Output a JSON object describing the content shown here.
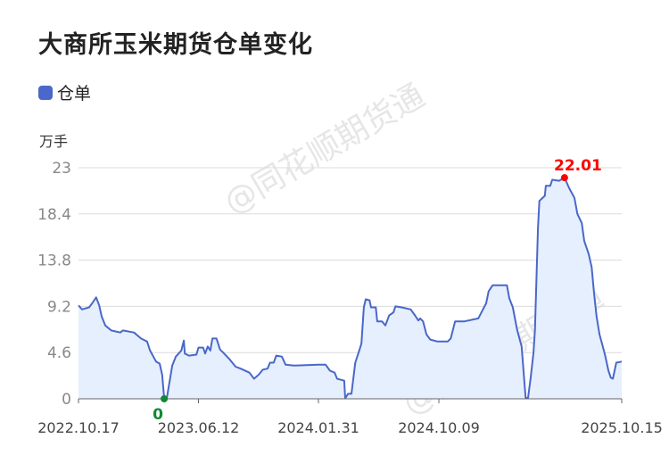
{
  "title": "大商所玉米期货仓单变化",
  "legend": {
    "label": "仓单",
    "color": "#4a67c9"
  },
  "watermark": "@同花顺期货通",
  "chart_data": {
    "type": "area",
    "title": "大商所玉米期货仓单变化",
    "ylabel": "万手",
    "xlabel": "",
    "ylim": [
      0,
      23
    ],
    "y_ticks": [
      "0",
      "4.6",
      "9.2",
      "13.8",
      "18.4",
      "23"
    ],
    "x_ticks": [
      "2022.10.17",
      "2023.06.12",
      "2024.01.31",
      "2024.10.09",
      "2025.10.15"
    ],
    "grid": true,
    "legend_position": "top-left",
    "line_color": "#4a67c9",
    "fill_color": "#e6effd",
    "series": [
      {
        "name": "仓单",
        "x": [
          "2022-10-17",
          "2022-10-24",
          "2022-11-07",
          "2022-11-13",
          "2022-11-21",
          "2022-11-27",
          "2022-12-02",
          "2022-12-09",
          "2022-12-21",
          "2023-01-08",
          "2023-01-13",
          "2023-02-04",
          "2023-02-18",
          "2023-03-02",
          "2023-03-08",
          "2023-03-20",
          "2023-03-27",
          "2023-04-01",
          "2023-04-05",
          "2023-04-10",
          "2023-04-21",
          "2023-04-28",
          "2023-05-09",
          "2023-05-14",
          "2023-05-16",
          "2023-05-24",
          "2023-06-08",
          "2023-06-12",
          "2023-06-21",
          "2023-06-25",
          "2023-06-30",
          "2023-07-05",
          "2023-07-09",
          "2023-07-17",
          "2023-07-24",
          "2023-07-30",
          "2023-08-12",
          "2023-08-23",
          "2023-09-02",
          "2023-09-19",
          "2023-09-28",
          "2023-10-07",
          "2023-10-15",
          "2023-10-24",
          "2023-10-29",
          "2023-11-05",
          "2023-11-10",
          "2023-11-21",
          "2023-11-28",
          "2023-12-15",
          "2024-01-31",
          "2024-02-15",
          "2024-02-24",
          "2024-03-05",
          "2024-03-10",
          "2024-03-25",
          "2024-03-27",
          "2024-04-02",
          "2024-04-09",
          "2024-04-17",
          "2024-04-24",
          "2024-04-30",
          "2024-05-05",
          "2024-05-09",
          "2024-05-17",
          "2024-05-20",
          "2024-05-30",
          "2024-06-02",
          "2024-06-12",
          "2024-06-19",
          "2024-06-27",
          "2024-07-06",
          "2024-07-10",
          "2024-07-23",
          "2024-08-11",
          "2024-08-20",
          "2024-08-27",
          "2024-08-31",
          "2024-09-06",
          "2024-09-13",
          "2024-09-21",
          "2024-10-06",
          "2024-10-27",
          "2024-11-02",
          "2024-11-11",
          "2024-11-29",
          "2024-12-28",
          "2025-01-13",
          "2025-01-18",
          "2025-01-26",
          "2025-02-24",
          "2025-03-01",
          "2025-03-08",
          "2025-03-17",
          "2025-03-26",
          "2025-04-03",
          "2025-04-08",
          "2025-04-13",
          "2025-04-19",
          "2025-04-22",
          "2025-04-28",
          "2025-05-01",
          "2025-05-12",
          "2025-05-14",
          "2025-05-23",
          "2025-05-27",
          "2025-06-10",
          "2025-06-21",
          "2025-06-30",
          "2025-07-11",
          "2025-07-17",
          "2025-07-26",
          "2025-07-31",
          "2025-08-09",
          "2025-08-15",
          "2025-08-20",
          "2025-08-25",
          "2025-08-31",
          "2025-09-05",
          "2025-09-11",
          "2025-09-18",
          "2025-09-23",
          "2025-09-27",
          "2025-10-04",
          "2025-10-15"
        ],
        "values": [
          9.3,
          8.9,
          9.1,
          9.5,
          10.1,
          9.3,
          8.2,
          7.3,
          6.8,
          6.6,
          6.8,
          6.6,
          6.0,
          5.7,
          4.8,
          3.7,
          3.5,
          2.4,
          0,
          0,
          3.3,
          4.2,
          4.8,
          5.8,
          4.5,
          4.3,
          4.4,
          5.1,
          5.1,
          4.5,
          5.2,
          4.8,
          6.0,
          6.0,
          4.9,
          4.6,
          3.9,
          3.2,
          3.0,
          2.6,
          2.0,
          2.4,
          2.9,
          3.0,
          3.6,
          3.6,
          4.3,
          4.2,
          3.4,
          3.3,
          3.4,
          3.4,
          2.8,
          2.6,
          2.0,
          1.8,
          0.05,
          0.5,
          0.5,
          3.6,
          4.6,
          5.5,
          9.1,
          9.9,
          9.8,
          9.1,
          9.1,
          7.7,
          7.7,
          7.3,
          8.3,
          8.6,
          9.2,
          9.1,
          8.9,
          8.3,
          7.8,
          8.0,
          7.7,
          6.4,
          5.9,
          5.7,
          5.7,
          6.0,
          7.7,
          7.7,
          8.0,
          9.5,
          10.7,
          11.3,
          11.3,
          10.0,
          9.1,
          6.8,
          5.2,
          0.05,
          0.1,
          2.0,
          4.6,
          6.8,
          17.0,
          19.7,
          20.2,
          21.2,
          21.2,
          21.8,
          21.7,
          22.01,
          21.0,
          20.0,
          18.4,
          17.5,
          15.7,
          14.4,
          13.1,
          10.4,
          8.2,
          6.4,
          5.5,
          4.4,
          2.8,
          2.1,
          2.0,
          3.6,
          3.7
        ]
      }
    ],
    "annotations": [
      {
        "type": "max",
        "x": "2025-06-21",
        "value": 22.01,
        "label": "22.01",
        "color": "#ff0000"
      },
      {
        "type": "min",
        "x": "2023-04-05",
        "value": 0,
        "label": "0",
        "color": "#118833"
      }
    ]
  }
}
